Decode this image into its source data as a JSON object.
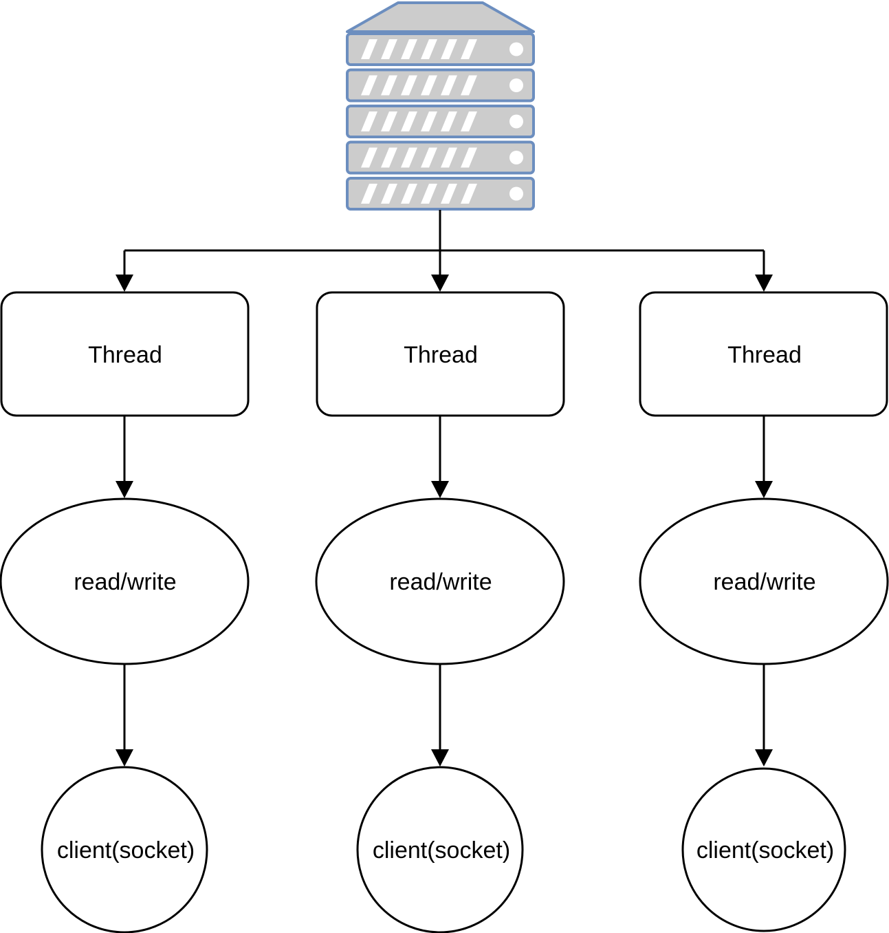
{
  "diagram": {
    "server": {
      "icon": "server-rack-icon",
      "units": 5
    },
    "columns": [
      {
        "thread_label": "Thread",
        "io_label": "read/write",
        "client_label": "client(socket)"
      },
      {
        "thread_label": "Thread",
        "io_label": "read/write",
        "client_label": "client(socket)"
      },
      {
        "thread_label": "Thread",
        "io_label": "read/write",
        "client_label": "client(socket)"
      }
    ]
  },
  "colors": {
    "server_fill": "#cccccc",
    "server_stroke": "#6c8ebf",
    "line": "#000000",
    "node_fill": "#ffffff"
  }
}
